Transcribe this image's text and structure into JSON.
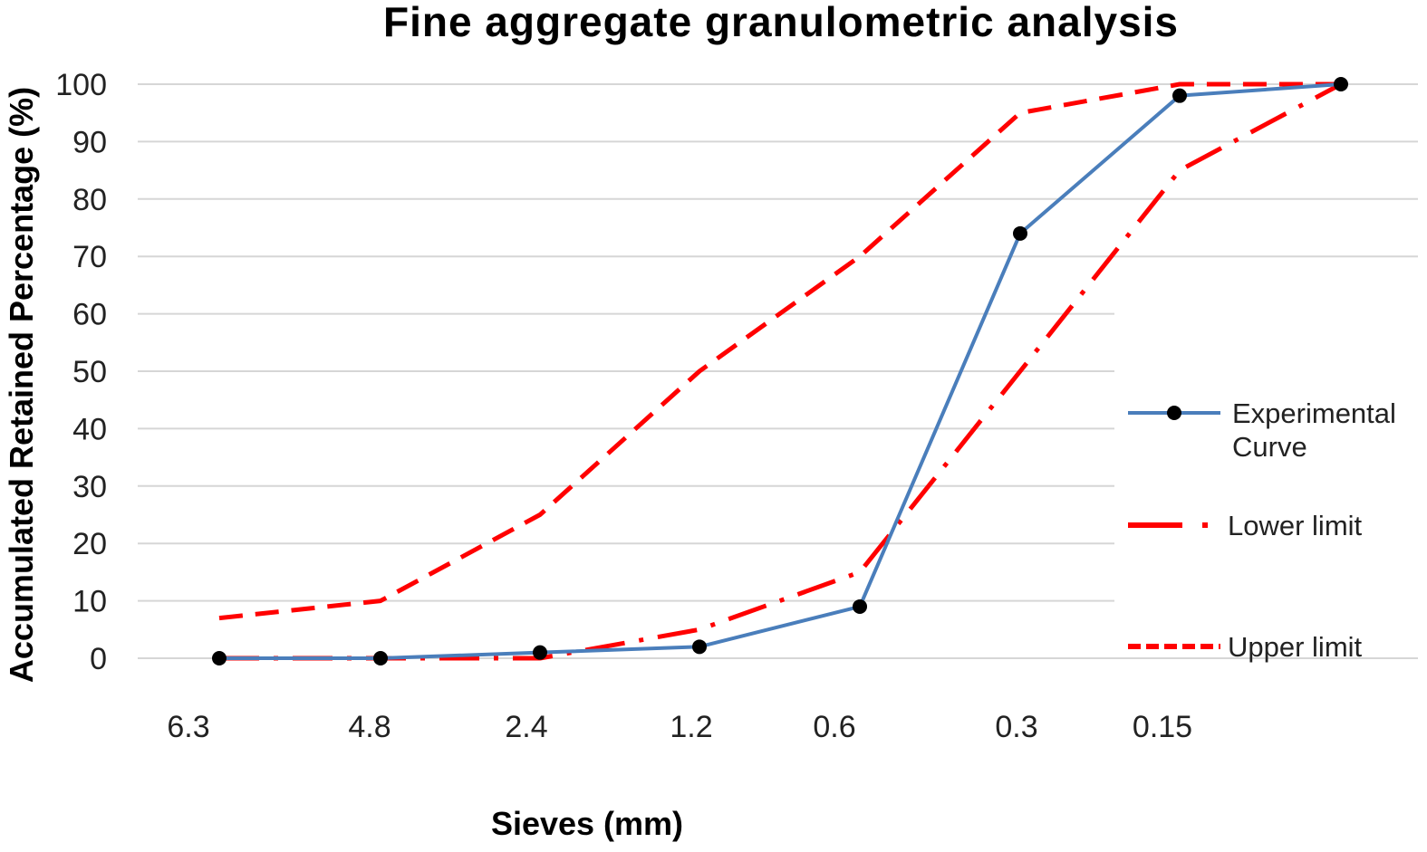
{
  "chart_data": {
    "type": "line",
    "title": "Fine aggregate granulometric analysis",
    "xlabel": "Sieves (mm)",
    "ylabel": "Accumulated Retained Percentage (%)",
    "ylim": [
      0,
      100
    ],
    "yticks": [
      "0",
      "10",
      "20",
      "30",
      "40",
      "50",
      "60",
      "70",
      "80",
      "90",
      "100"
    ],
    "categories": [
      "6.3",
      "4.8",
      "2.4",
      "1.2",
      "0.6",
      "0.3",
      "0.15",
      ""
    ],
    "grid": true,
    "legend_position": "right",
    "series": [
      {
        "name": "Experimental Curve",
        "name_lines": [
          "Experimental",
          "Curve"
        ],
        "values": [
          0,
          0,
          1,
          2,
          9,
          74,
          98,
          100
        ],
        "color": "#4a7ebb",
        "style": "solid",
        "markers": true
      },
      {
        "name": "Lower limit",
        "name_lines": [
          "Lower limit"
        ],
        "values": [
          0,
          0,
          0,
          5,
          15,
          50,
          85,
          100
        ],
        "color": "#ff0000",
        "style": "dash-dot",
        "markers": false
      },
      {
        "name": "Upper limit",
        "name_lines": [
          "Upper limit"
        ],
        "values": [
          7,
          10,
          25,
          50,
          70,
          95,
          100,
          100
        ],
        "color": "#ff0000",
        "style": "dash",
        "markers": false
      }
    ]
  }
}
